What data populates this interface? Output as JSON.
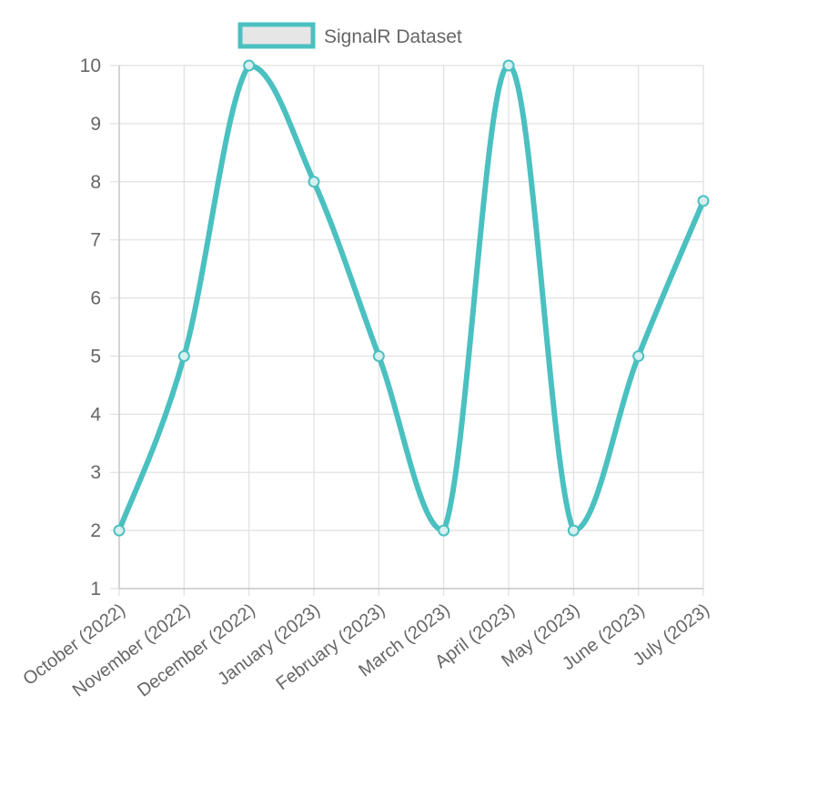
{
  "chart_data": {
    "type": "line",
    "categories": [
      "October (2022)",
      "November (2022)",
      "December (2022)",
      "January (2023)",
      "February (2023)",
      "March (2023)",
      "April (2023)",
      "May (2023)",
      "June (2023)",
      "July (2023)"
    ],
    "series": [
      {
        "name": "SignalR Dataset",
        "values": [
          2,
          5,
          10,
          8,
          5,
          2,
          10,
          2,
          5,
          7.67
        ],
        "color": "#4bc0c0",
        "fill_color": "#e6e6e6"
      }
    ],
    "ylim": [
      1,
      10
    ],
    "yticks": [
      1,
      2,
      3,
      4,
      5,
      6,
      7,
      8,
      9,
      10
    ],
    "grid": true,
    "legend_position": "top",
    "title": "",
    "xlabel": "",
    "ylabel": ""
  }
}
